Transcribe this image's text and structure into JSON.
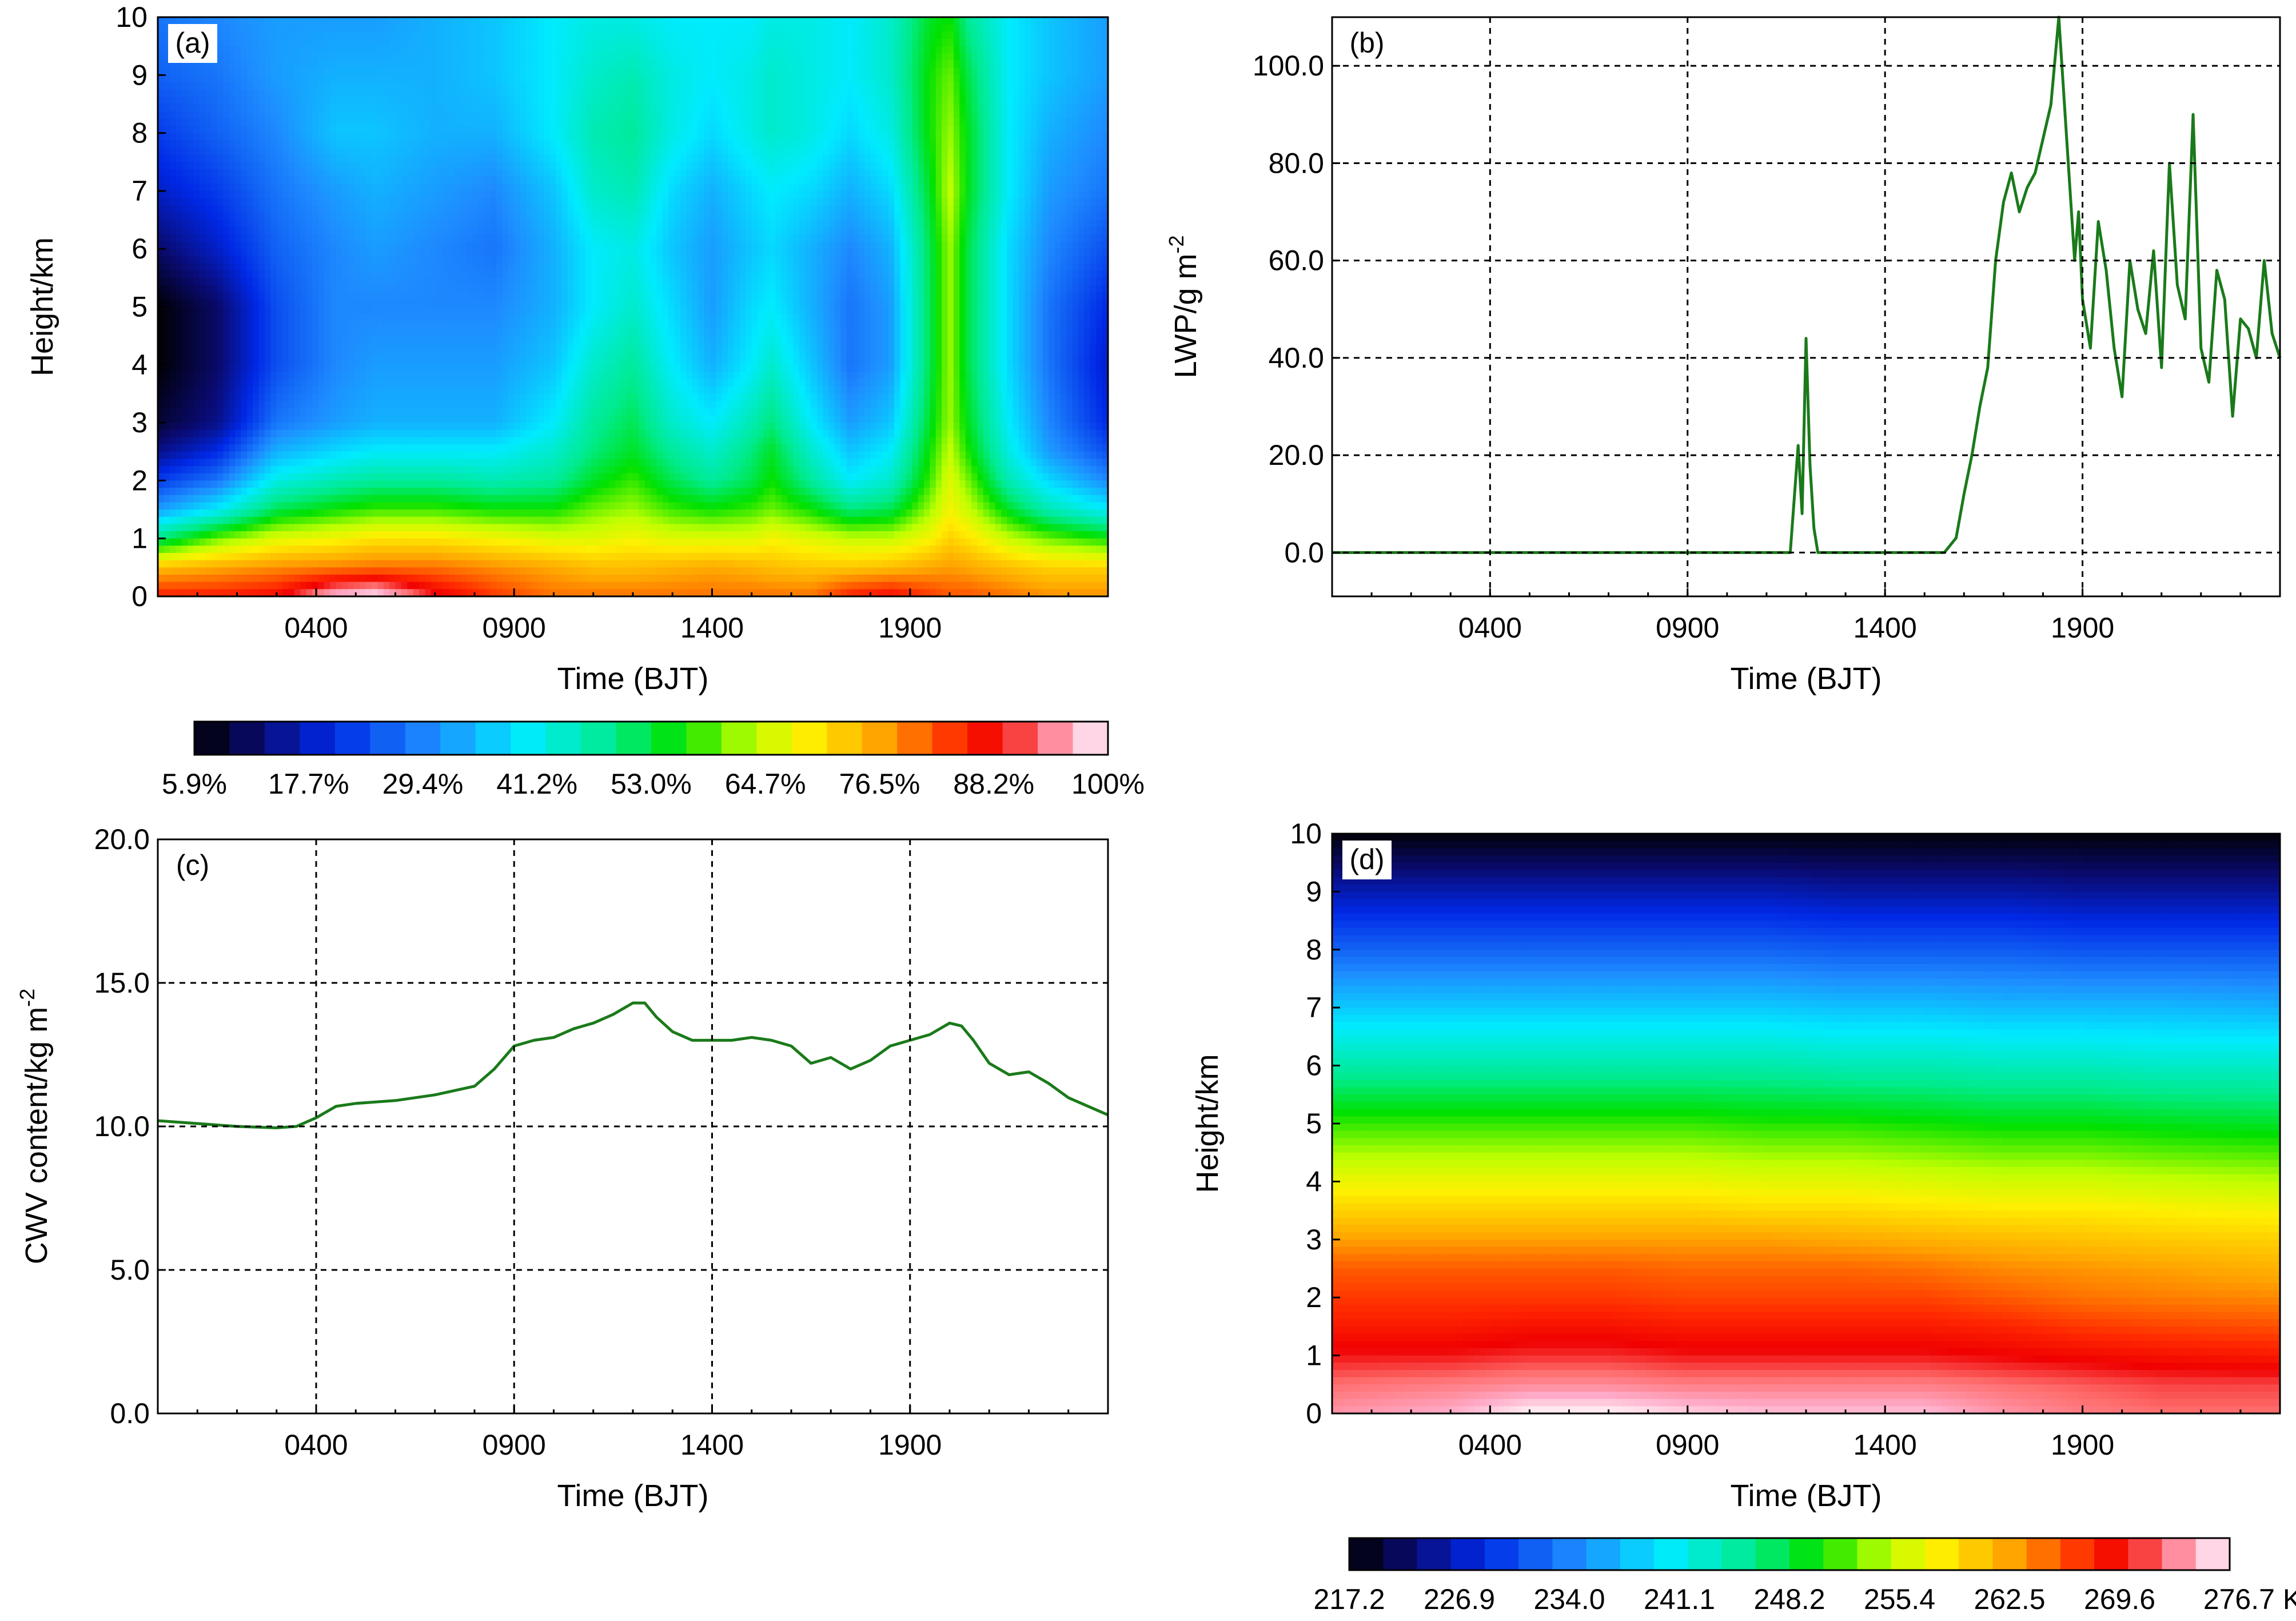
{
  "chart_data": [
    {
      "panel": "(a)",
      "type": "heatmap",
      "xlabel": "Time (BJT)",
      "ylabel": "Height/km",
      "xlim": [
        0,
        24
      ],
      "ylim": [
        0,
        10
      ],
      "x_ticks": [
        {
          "value": 4,
          "label": "0400"
        },
        {
          "value": 9,
          "label": "0900"
        },
        {
          "value": 14,
          "label": "1400"
        },
        {
          "value": 19,
          "label": "1900"
        }
      ],
      "y_ticks": [
        "0",
        "1",
        "2",
        "3",
        "4",
        "5",
        "6",
        "7",
        "8",
        "9",
        "10"
      ],
      "colorbar": {
        "labels": [
          "5.9%",
          "17.7%",
          "29.4%",
          "41.2%",
          "53.0%",
          "64.7%",
          "76.5%",
          "88.2%",
          "100%"
        ],
        "range": [
          5.9,
          100
        ]
      },
      "time_hours": [
        0,
        1.5,
        3,
        4.5,
        5.5,
        7,
        8.5,
        10,
        11,
        12,
        13,
        14,
        15,
        15.5,
        16.5,
        17.5,
        18.5,
        19.5,
        20,
        20.5,
        21.5,
        22.5,
        24
      ],
      "heights_km": [
        0,
        0.5,
        1,
        1.5,
        2,
        2.5,
        3,
        4,
        5,
        6,
        7,
        8,
        9,
        10
      ],
      "values_pct": [
        [
          86,
          86,
          88,
          98,
          100,
          90,
          84,
          80,
          80,
          80,
          80,
          80,
          80,
          80,
          80,
          86,
          88,
          84,
          82,
          82,
          80,
          78,
          78
        ],
        [
          74,
          76,
          78,
          79,
          80,
          80,
          78,
          76,
          74,
          74,
          75,
          76,
          75,
          74,
          73,
          73,
          74,
          76,
          77,
          76,
          74,
          72,
          72
        ],
        [
          50,
          60,
          66,
          68,
          70,
          70,
          68,
          66,
          66,
          68,
          66,
          66,
          66,
          68,
          66,
          64,
          64,
          68,
          72,
          70,
          64,
          60,
          56
        ],
        [
          32,
          40,
          52,
          56,
          58,
          58,
          56,
          56,
          60,
          62,
          58,
          56,
          58,
          60,
          56,
          50,
          52,
          62,
          68,
          64,
          54,
          46,
          40
        ],
        [
          22,
          28,
          42,
          46,
          48,
          48,
          46,
          48,
          54,
          58,
          52,
          48,
          52,
          56,
          48,
          40,
          44,
          58,
          66,
          60,
          46,
          38,
          30
        ],
        [
          14,
          20,
          34,
          38,
          40,
          40,
          40,
          44,
          50,
          54,
          48,
          44,
          50,
          54,
          44,
          36,
          40,
          56,
          64,
          56,
          42,
          32,
          24
        ],
        [
          9,
          14,
          28,
          32,
          34,
          34,
          34,
          40,
          48,
          52,
          44,
          40,
          46,
          50,
          40,
          32,
          36,
          54,
          62,
          54,
          40,
          30,
          20
        ],
        [
          6,
          12,
          24,
          30,
          32,
          32,
          32,
          36,
          44,
          48,
          40,
          34,
          40,
          44,
          36,
          28,
          32,
          52,
          62,
          52,
          38,
          28,
          18
        ],
        [
          6,
          12,
          24,
          30,
          30,
          30,
          30,
          34,
          40,
          44,
          38,
          32,
          38,
          40,
          34,
          28,
          32,
          52,
          62,
          52,
          38,
          28,
          20
        ],
        [
          12,
          18,
          26,
          30,
          32,
          30,
          28,
          34,
          40,
          42,
          36,
          32,
          36,
          38,
          34,
          30,
          34,
          52,
          62,
          52,
          38,
          30,
          24
        ],
        [
          18,
          22,
          28,
          32,
          34,
          32,
          30,
          36,
          44,
          46,
          38,
          34,
          38,
          40,
          38,
          34,
          38,
          54,
          64,
          54,
          40,
          32,
          28
        ],
        [
          22,
          26,
          30,
          36,
          36,
          34,
          34,
          40,
          46,
          48,
          42,
          38,
          42,
          44,
          42,
          38,
          42,
          56,
          62,
          54,
          40,
          34,
          30
        ],
        [
          26,
          28,
          32,
          34,
          34,
          34,
          36,
          40,
          44,
          46,
          42,
          40,
          42,
          44,
          42,
          40,
          44,
          56,
          60,
          52,
          40,
          36,
          32
        ],
        [
          28,
          30,
          32,
          32,
          32,
          34,
          36,
          40,
          42,
          42,
          40,
          40,
          40,
          42,
          42,
          40,
          44,
          54,
          56,
          48,
          40,
          36,
          32
        ]
      ]
    },
    {
      "panel": "(b)",
      "type": "line",
      "xlabel": "Time (BJT)",
      "ylabel": "LWP/g m",
      "ylabel_exponent": "-2",
      "xlim": [
        0,
        24
      ],
      "ylim": [
        -9,
        110
      ],
      "x_ticks": [
        {
          "value": 4,
          "label": "0400"
        },
        {
          "value": 9,
          "label": "0900"
        },
        {
          "value": 14,
          "label": "1400"
        },
        {
          "value": 19,
          "label": "1900"
        }
      ],
      "y_ticks": [
        {
          "value": 0,
          "label": "0.0"
        },
        {
          "value": 20,
          "label": "20.0"
        },
        {
          "value": 40,
          "label": "40.0"
        },
        {
          "value": 60,
          "label": "60.0"
        },
        {
          "value": 80,
          "label": "80.0"
        },
        {
          "value": 100,
          "label": "100.0"
        }
      ],
      "grid": true,
      "line_color": "#1a7a1a",
      "x": [
        0,
        1,
        2,
        2.8,
        3.2,
        4,
        5,
        6,
        7,
        8,
        9,
        10,
        11,
        11.6,
        11.8,
        11.9,
        12.0,
        12.1,
        12.2,
        12.3,
        12.5,
        12.8,
        13,
        14,
        14.5,
        15,
        15.5,
        15.8,
        16.0,
        16.2,
        16.4,
        16.6,
        16.8,
        17.0,
        17.2,
        17.4,
        17.6,
        17.8,
        18.0,
        18.2,
        18.4,
        18.6,
        18.8,
        18.9,
        19.0,
        19.2,
        19.4,
        19.6,
        19.8,
        20.0,
        20.2,
        20.4,
        20.6,
        20.8,
        21.0,
        21.2,
        21.4,
        21.6,
        21.8,
        22.0,
        22.2,
        22.4,
        22.6,
        22.8,
        23.0,
        23.2,
        23.4,
        23.6,
        23.8,
        24.0
      ],
      "y": [
        0,
        0,
        0,
        0,
        0,
        0,
        0,
        0,
        0,
        0,
        0,
        0,
        0,
        0,
        22,
        8,
        44,
        18,
        5,
        0,
        0,
        0,
        0,
        0,
        0,
        0,
        0,
        3,
        12,
        20,
        30,
        38,
        60,
        72,
        78,
        70,
        75,
        78,
        85,
        92,
        110,
        85,
        60,
        70,
        52,
        42,
        68,
        58,
        42,
        32,
        60,
        50,
        45,
        62,
        38,
        80,
        55,
        48,
        90,
        42,
        35,
        58,
        52,
        28,
        48,
        46,
        40,
        60,
        45,
        40
      ]
    },
    {
      "panel": "(c)",
      "type": "line",
      "xlabel": "Time (BJT)",
      "ylabel": "CWV content/kg m",
      "ylabel_exponent": "-2",
      "xlim": [
        0,
        24
      ],
      "ylim": [
        0,
        20
      ],
      "x_ticks": [
        {
          "value": 4,
          "label": "0400"
        },
        {
          "value": 9,
          "label": "0900"
        },
        {
          "value": 14,
          "label": "1400"
        },
        {
          "value": 19,
          "label": "1900"
        }
      ],
      "y_ticks": [
        {
          "value": 0,
          "label": "0.0"
        },
        {
          "value": 5,
          "label": "5.0"
        },
        {
          "value": 10,
          "label": "10.0"
        },
        {
          "value": 15,
          "label": "15.0"
        },
        {
          "value": 20,
          "label": "20.0"
        }
      ],
      "grid": true,
      "line_color": "#1a7a1a",
      "x": [
        0,
        1,
        2,
        3,
        3.5,
        4,
        4.5,
        5,
        6,
        7,
        8,
        8.5,
        9,
        9.5,
        10,
        10.5,
        11,
        11.5,
        12,
        12.3,
        12.6,
        13,
        13.5,
        14,
        14.5,
        15,
        15.5,
        16,
        16.5,
        17,
        17.5,
        18,
        18.5,
        19,
        19.5,
        20,
        20.3,
        20.6,
        21,
        21.5,
        22,
        22.5,
        23,
        23.5,
        24
      ],
      "y": [
        10.2,
        10.1,
        10.0,
        9.95,
        10.0,
        10.3,
        10.7,
        10.8,
        10.9,
        11.1,
        11.4,
        12.0,
        12.8,
        13.0,
        13.1,
        13.4,
        13.6,
        13.9,
        14.3,
        14.3,
        13.8,
        13.3,
        13.0,
        13.0,
        13.0,
        13.1,
        13.0,
        12.8,
        12.2,
        12.4,
        12.0,
        12.3,
        12.8,
        13.0,
        13.2,
        13.6,
        13.5,
        13.0,
        12.2,
        11.8,
        11.9,
        11.5,
        11.0,
        10.7,
        10.4
      ]
    },
    {
      "panel": "(d)",
      "type": "heatmap",
      "xlabel": "Time (BJT)",
      "ylabel": "Height/km",
      "xlim": [
        0,
        24
      ],
      "ylim": [
        0,
        10
      ],
      "x_ticks": [
        {
          "value": 4,
          "label": "0400"
        },
        {
          "value": 9,
          "label": "0900"
        },
        {
          "value": 14,
          "label": "1400"
        },
        {
          "value": 19,
          "label": "1900"
        }
      ],
      "y_ticks": [
        "0",
        "1",
        "2",
        "3",
        "4",
        "5",
        "6",
        "7",
        "8",
        "9",
        "10"
      ],
      "colorbar": {
        "labels": [
          "217.2",
          "226.9",
          "234.0",
          "241.1",
          "248.2",
          "255.4",
          "262.5",
          "269.6",
          "276.7 K"
        ],
        "range": [
          217.2,
          276.7
        ]
      },
      "time_hours": [
        0,
        3,
        5,
        7,
        9,
        11,
        13,
        15,
        17,
        19,
        21,
        24
      ],
      "heights_km": [
        0,
        0.5,
        1,
        1.5,
        2,
        2.5,
        3,
        3.5,
        4,
        5,
        6,
        7,
        8,
        9,
        10
      ],
      "values_K": [
        [
          273.5,
          274.5,
          276.5,
          276.5,
          275.5,
          275.0,
          275.0,
          275.0,
          273.5,
          272.5,
          272.0,
          272.0
        ],
        [
          272.0,
          272.5,
          273.0,
          273.0,
          272.5,
          272.5,
          272.5,
          272.5,
          272.0,
          271.5,
          271.0,
          271.0
        ],
        [
          270.0,
          270.0,
          270.5,
          270.5,
          270.0,
          270.0,
          270.0,
          270.0,
          269.5,
          269.0,
          268.5,
          268.0
        ],
        [
          268.0,
          268.0,
          268.5,
          268.5,
          268.0,
          268.0,
          268.0,
          268.0,
          267.5,
          266.5,
          266.0,
          265.5
        ],
        [
          266.5,
          266.5,
          266.5,
          266.5,
          266.0,
          266.0,
          266.0,
          266.0,
          265.0,
          264.0,
          263.5,
          263.0
        ],
        [
          265.0,
          265.0,
          265.0,
          265.0,
          264.5,
          264.5,
          264.5,
          264.0,
          263.0,
          262.5,
          262.0,
          261.0
        ],
        [
          262.0,
          262.0,
          262.0,
          262.0,
          262.0,
          262.0,
          261.5,
          261.0,
          260.5,
          260.0,
          259.5,
          259.0
        ],
        [
          259.0,
          259.0,
          259.0,
          259.0,
          259.0,
          258.5,
          258.5,
          258.0,
          257.5,
          257.5,
          257.0,
          256.5
        ],
        [
          256.0,
          256.0,
          256.0,
          256.0,
          256.0,
          255.5,
          255.5,
          255.0,
          254.5,
          254.5,
          254.0,
          253.5
        ],
        [
          250.0,
          250.0,
          250.0,
          250.0,
          250.0,
          249.5,
          249.5,
          249.0,
          248.5,
          248.5,
          248.0,
          247.5
        ],
        [
          243.0,
          243.0,
          243.0,
          243.0,
          243.0,
          243.0,
          242.5,
          242.5,
          242.0,
          242.0,
          241.5,
          241.5
        ],
        [
          236.5,
          236.5,
          236.5,
          236.5,
          236.5,
          236.5,
          236.0,
          236.0,
          235.5,
          235.5,
          235.5,
          235.0
        ],
        [
          230.0,
          230.0,
          230.0,
          230.0,
          230.0,
          230.0,
          229.5,
          229.5,
          229.5,
          229.0,
          229.0,
          229.0
        ],
        [
          224.0,
          224.0,
          224.0,
          224.0,
          224.0,
          224.0,
          223.5,
          223.5,
          223.5,
          223.0,
          223.0,
          223.0
        ],
        [
          217.5,
          217.5,
          217.5,
          217.5,
          217.5,
          217.5,
          217.5,
          217.5,
          217.5,
          217.5,
          217.5,
          217.5
        ]
      ]
    }
  ]
}
